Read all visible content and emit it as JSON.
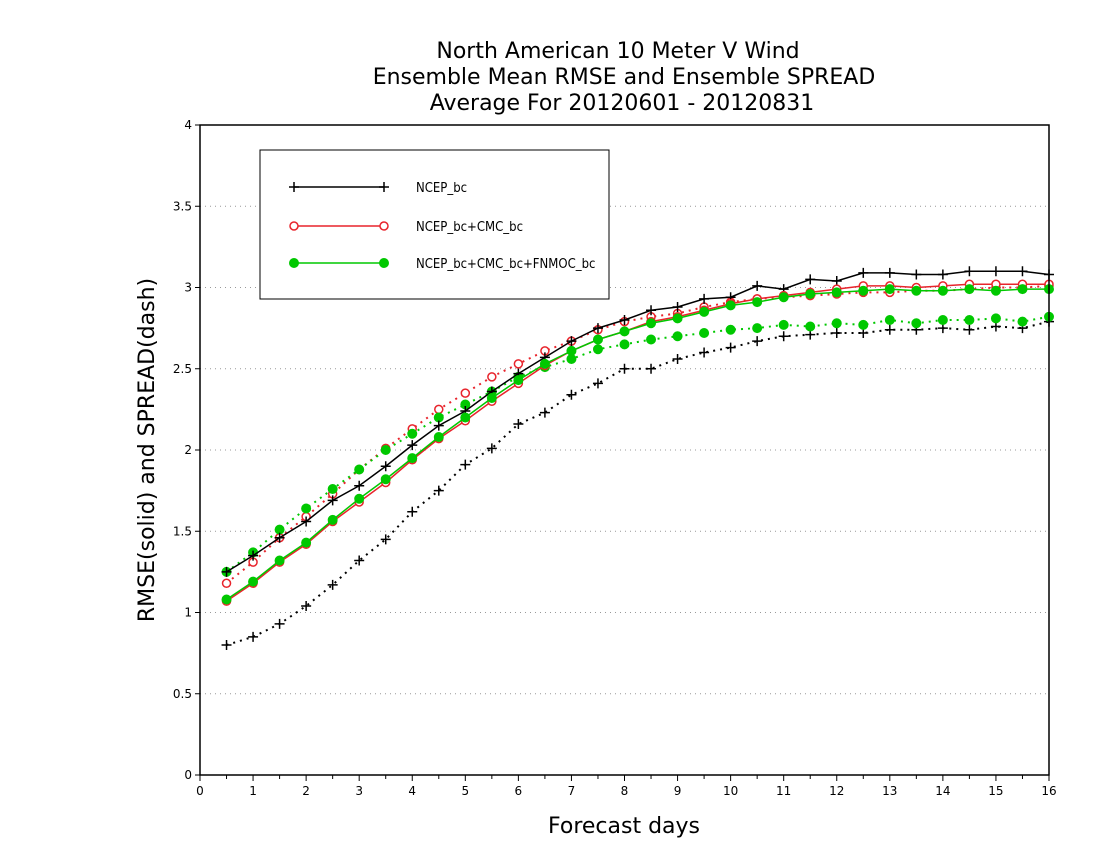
{
  "chart_data": {
    "type": "line",
    "title_lines": [
      "North American 10 Meter V Wind",
      "Ensemble Mean RMSE and Ensemble SPREAD",
      "Average For 20120601 - 20120831"
    ],
    "xlabel": "Forecast days",
    "ylabel": "RMSE(solid) and SPREAD(dash)",
    "xlim": [
      0,
      16
    ],
    "ylim": [
      0,
      4
    ],
    "x_ticks": [
      "0",
      "1",
      "2",
      "3",
      "4",
      "5",
      "6",
      "7",
      "8",
      "9",
      "10",
      "11",
      "12",
      "13",
      "14",
      "15",
      "16"
    ],
    "y_ticks": [
      "0",
      "0.5",
      "1",
      "1.5",
      "2",
      "2.5",
      "3",
      "3.5",
      "4"
    ],
    "grid": "horizontal-dotted",
    "legend_position": "top-left",
    "x": [
      0.5,
      1,
      1.5,
      2,
      2.5,
      3,
      3.5,
      4,
      4.5,
      5,
      5.5,
      6,
      6.5,
      7,
      7.5,
      8,
      8.5,
      9,
      9.5,
      10,
      10.5,
      11,
      11.5,
      12,
      12.5,
      13,
      13.5,
      14,
      14.5,
      15,
      15.5,
      16
    ],
    "series": [
      {
        "name": "NCEP_bc",
        "color": "#000000",
        "marker": "plus",
        "rmse": [
          1.25,
          1.35,
          1.46,
          1.56,
          1.69,
          1.78,
          1.9,
          2.03,
          2.15,
          2.24,
          2.36,
          2.47,
          2.57,
          2.67,
          2.75,
          2.8,
          2.86,
          2.88,
          2.93,
          2.94,
          3.01,
          2.99,
          3.05,
          3.04,
          3.09,
          3.09,
          3.08,
          3.08,
          3.1,
          3.1,
          3.1,
          3.08
        ],
        "spread": [
          0.8,
          0.85,
          0.93,
          1.04,
          1.17,
          1.32,
          1.45,
          1.62,
          1.75,
          1.91,
          2.01,
          2.16,
          2.23,
          2.34,
          2.41,
          2.5,
          2.5,
          2.56,
          2.6,
          2.63,
          2.67,
          2.7,
          2.71,
          2.72,
          2.72,
          2.74,
          2.74,
          2.75,
          2.74,
          2.76,
          2.75,
          2.79
        ]
      },
      {
        "name": "NCEP_bc+CMC_bc",
        "color": "#e8242c",
        "marker": "circle-open",
        "rmse": [
          1.07,
          1.18,
          1.31,
          1.42,
          1.56,
          1.68,
          1.8,
          1.94,
          2.07,
          2.18,
          2.3,
          2.41,
          2.52,
          2.61,
          2.68,
          2.73,
          2.79,
          2.82,
          2.86,
          2.9,
          2.93,
          2.95,
          2.97,
          2.99,
          3.01,
          3.01,
          3.0,
          3.01,
          3.02,
          3.02,
          3.02,
          3.02
        ],
        "spread": [
          1.18,
          1.31,
          1.46,
          1.59,
          1.73,
          1.88,
          2.01,
          2.13,
          2.25,
          2.35,
          2.45,
          2.53,
          2.61,
          2.67,
          2.74,
          2.79,
          2.82,
          2.84,
          2.88,
          2.91,
          2.93,
          2.94,
          2.95,
          2.96,
          2.97,
          2.97,
          2.98,
          2.98,
          2.99,
          3.0,
          3.0,
          3.01
        ]
      },
      {
        "name": "NCEP_bc+CMC_bc+FNMOC_bc",
        "color": "#00c800",
        "marker": "circle-filled",
        "rmse": [
          1.08,
          1.19,
          1.32,
          1.43,
          1.57,
          1.7,
          1.82,
          1.95,
          2.08,
          2.2,
          2.32,
          2.43,
          2.53,
          2.61,
          2.68,
          2.73,
          2.78,
          2.81,
          2.85,
          2.89,
          2.91,
          2.94,
          2.96,
          2.97,
          2.98,
          2.99,
          2.98,
          2.98,
          2.99,
          2.98,
          2.99,
          2.99
        ],
        "spread": [
          1.25,
          1.37,
          1.51,
          1.64,
          1.76,
          1.88,
          2.0,
          2.1,
          2.2,
          2.28,
          2.36,
          2.45,
          2.51,
          2.56,
          2.62,
          2.65,
          2.68,
          2.7,
          2.72,
          2.74,
          2.75,
          2.77,
          2.76,
          2.78,
          2.77,
          2.8,
          2.78,
          2.8,
          2.8,
          2.81,
          2.79,
          2.82
        ]
      }
    ]
  }
}
